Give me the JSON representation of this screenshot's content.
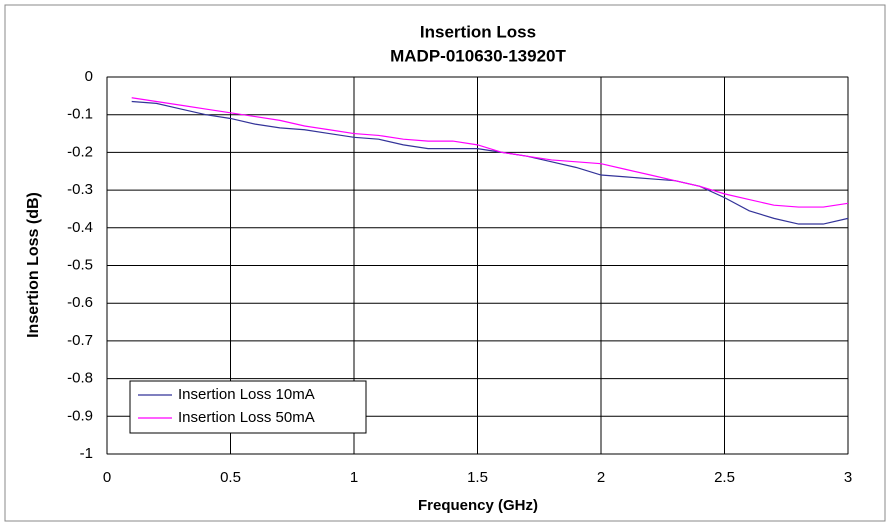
{
  "chart_data": {
    "type": "line",
    "title": "Insertion Loss",
    "subtitle": "MADP-010630-13920T",
    "x_label": "Frequency (GHz)",
    "y_label": "Insertion Loss (dB)",
    "x": [
      0.1,
      0.2,
      0.3,
      0.4,
      0.5,
      0.6,
      0.7,
      0.8,
      0.9,
      1.0,
      1.1,
      1.2,
      1.3,
      1.4,
      1.5,
      1.6,
      1.7,
      1.8,
      1.9,
      2.0,
      2.1,
      2.2,
      2.3,
      2.4,
      2.5,
      2.6,
      2.7,
      2.8,
      2.9,
      3.0
    ],
    "series": [
      {
        "name": "Insertion Loss 10mA",
        "color": "#333399",
        "values": [
          -0.065,
          -0.07,
          -0.085,
          -0.1,
          -0.11,
          -0.125,
          -0.135,
          -0.14,
          -0.15,
          -0.16,
          -0.165,
          -0.18,
          -0.19,
          -0.19,
          -0.19,
          -0.2,
          -0.21,
          -0.225,
          -0.24,
          -0.26,
          -0.265,
          -0.27,
          -0.275,
          -0.29,
          -0.32,
          -0.355,
          -0.375,
          -0.39,
          -0.39,
          -0.375
        ]
      },
      {
        "name": "Insertion Loss 50mA",
        "color": "#ff00ff",
        "values": [
          -0.055,
          -0.065,
          -0.075,
          -0.085,
          -0.095,
          -0.105,
          -0.115,
          -0.13,
          -0.14,
          -0.15,
          -0.155,
          -0.165,
          -0.17,
          -0.17,
          -0.18,
          -0.2,
          -0.21,
          -0.22,
          -0.225,
          -0.23,
          -0.245,
          -0.26,
          -0.275,
          -0.29,
          -0.31,
          -0.325,
          -0.34,
          -0.345,
          -0.345,
          -0.335
        ]
      }
    ],
    "xlim": [
      0,
      3
    ],
    "xticks": [
      0,
      0.5,
      1,
      1.5,
      2,
      2.5,
      3
    ],
    "ylim": [
      -1,
      0
    ],
    "yticks": [
      0,
      -0.1,
      -0.2,
      -0.3,
      -0.4,
      -0.5,
      -0.6,
      -0.7,
      -0.8,
      -0.9,
      -1
    ],
    "grid": true,
    "legend": "lower-left"
  }
}
